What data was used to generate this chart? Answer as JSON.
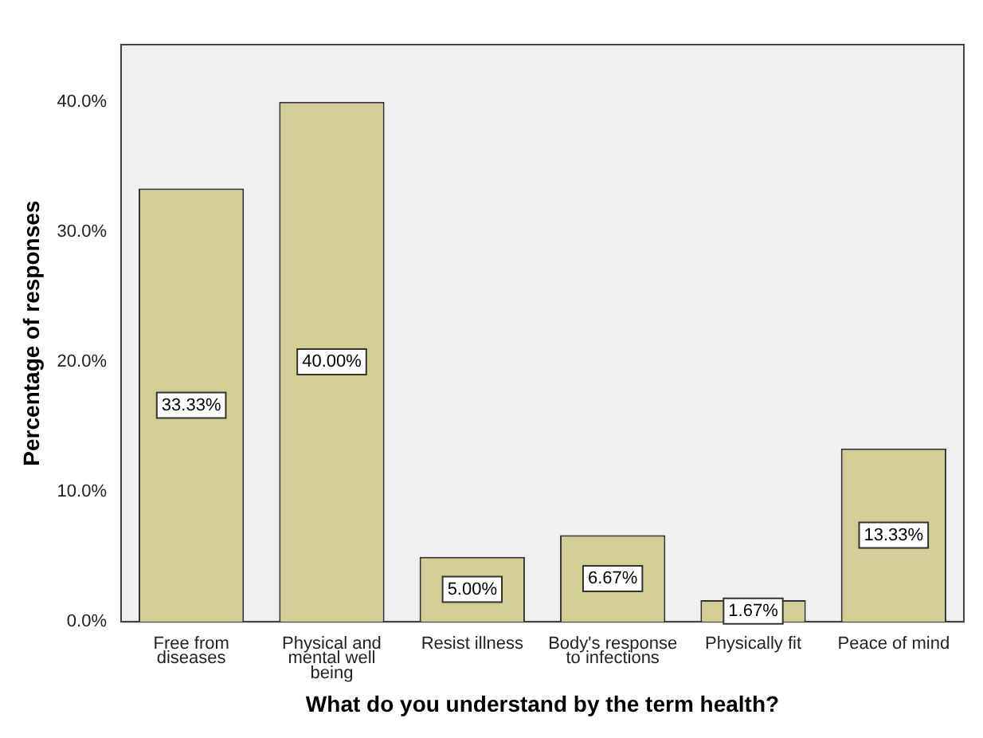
{
  "chart_data": {
    "type": "bar",
    "xlabel": "What do you understand by the term health?",
    "ylabel": "Percentage of responses",
    "categories": [
      "Free from diseases",
      "Physical and mental well being",
      "Resist illness",
      "Body's response to infections",
      "Physically fit",
      "Peace of mind"
    ],
    "values": [
      33.33,
      40.0,
      5.0,
      6.67,
      1.67,
      13.33
    ],
    "value_labels": [
      "33.33%",
      "40.00%",
      "5.00%",
      "6.67%",
      "1.67%",
      "13.33%"
    ],
    "color": "#d3cd96",
    "ylim": [
      0,
      44.4
    ],
    "yticks": [
      {
        "value": 0,
        "label": "0.0%"
      },
      {
        "value": 10,
        "label": "10.0%"
      },
      {
        "value": 20,
        "label": "20.0%"
      },
      {
        "value": 30,
        "label": "30.0%"
      },
      {
        "value": 40,
        "label": "40.0%"
      }
    ],
    "grid": false,
    "legend": false
  }
}
